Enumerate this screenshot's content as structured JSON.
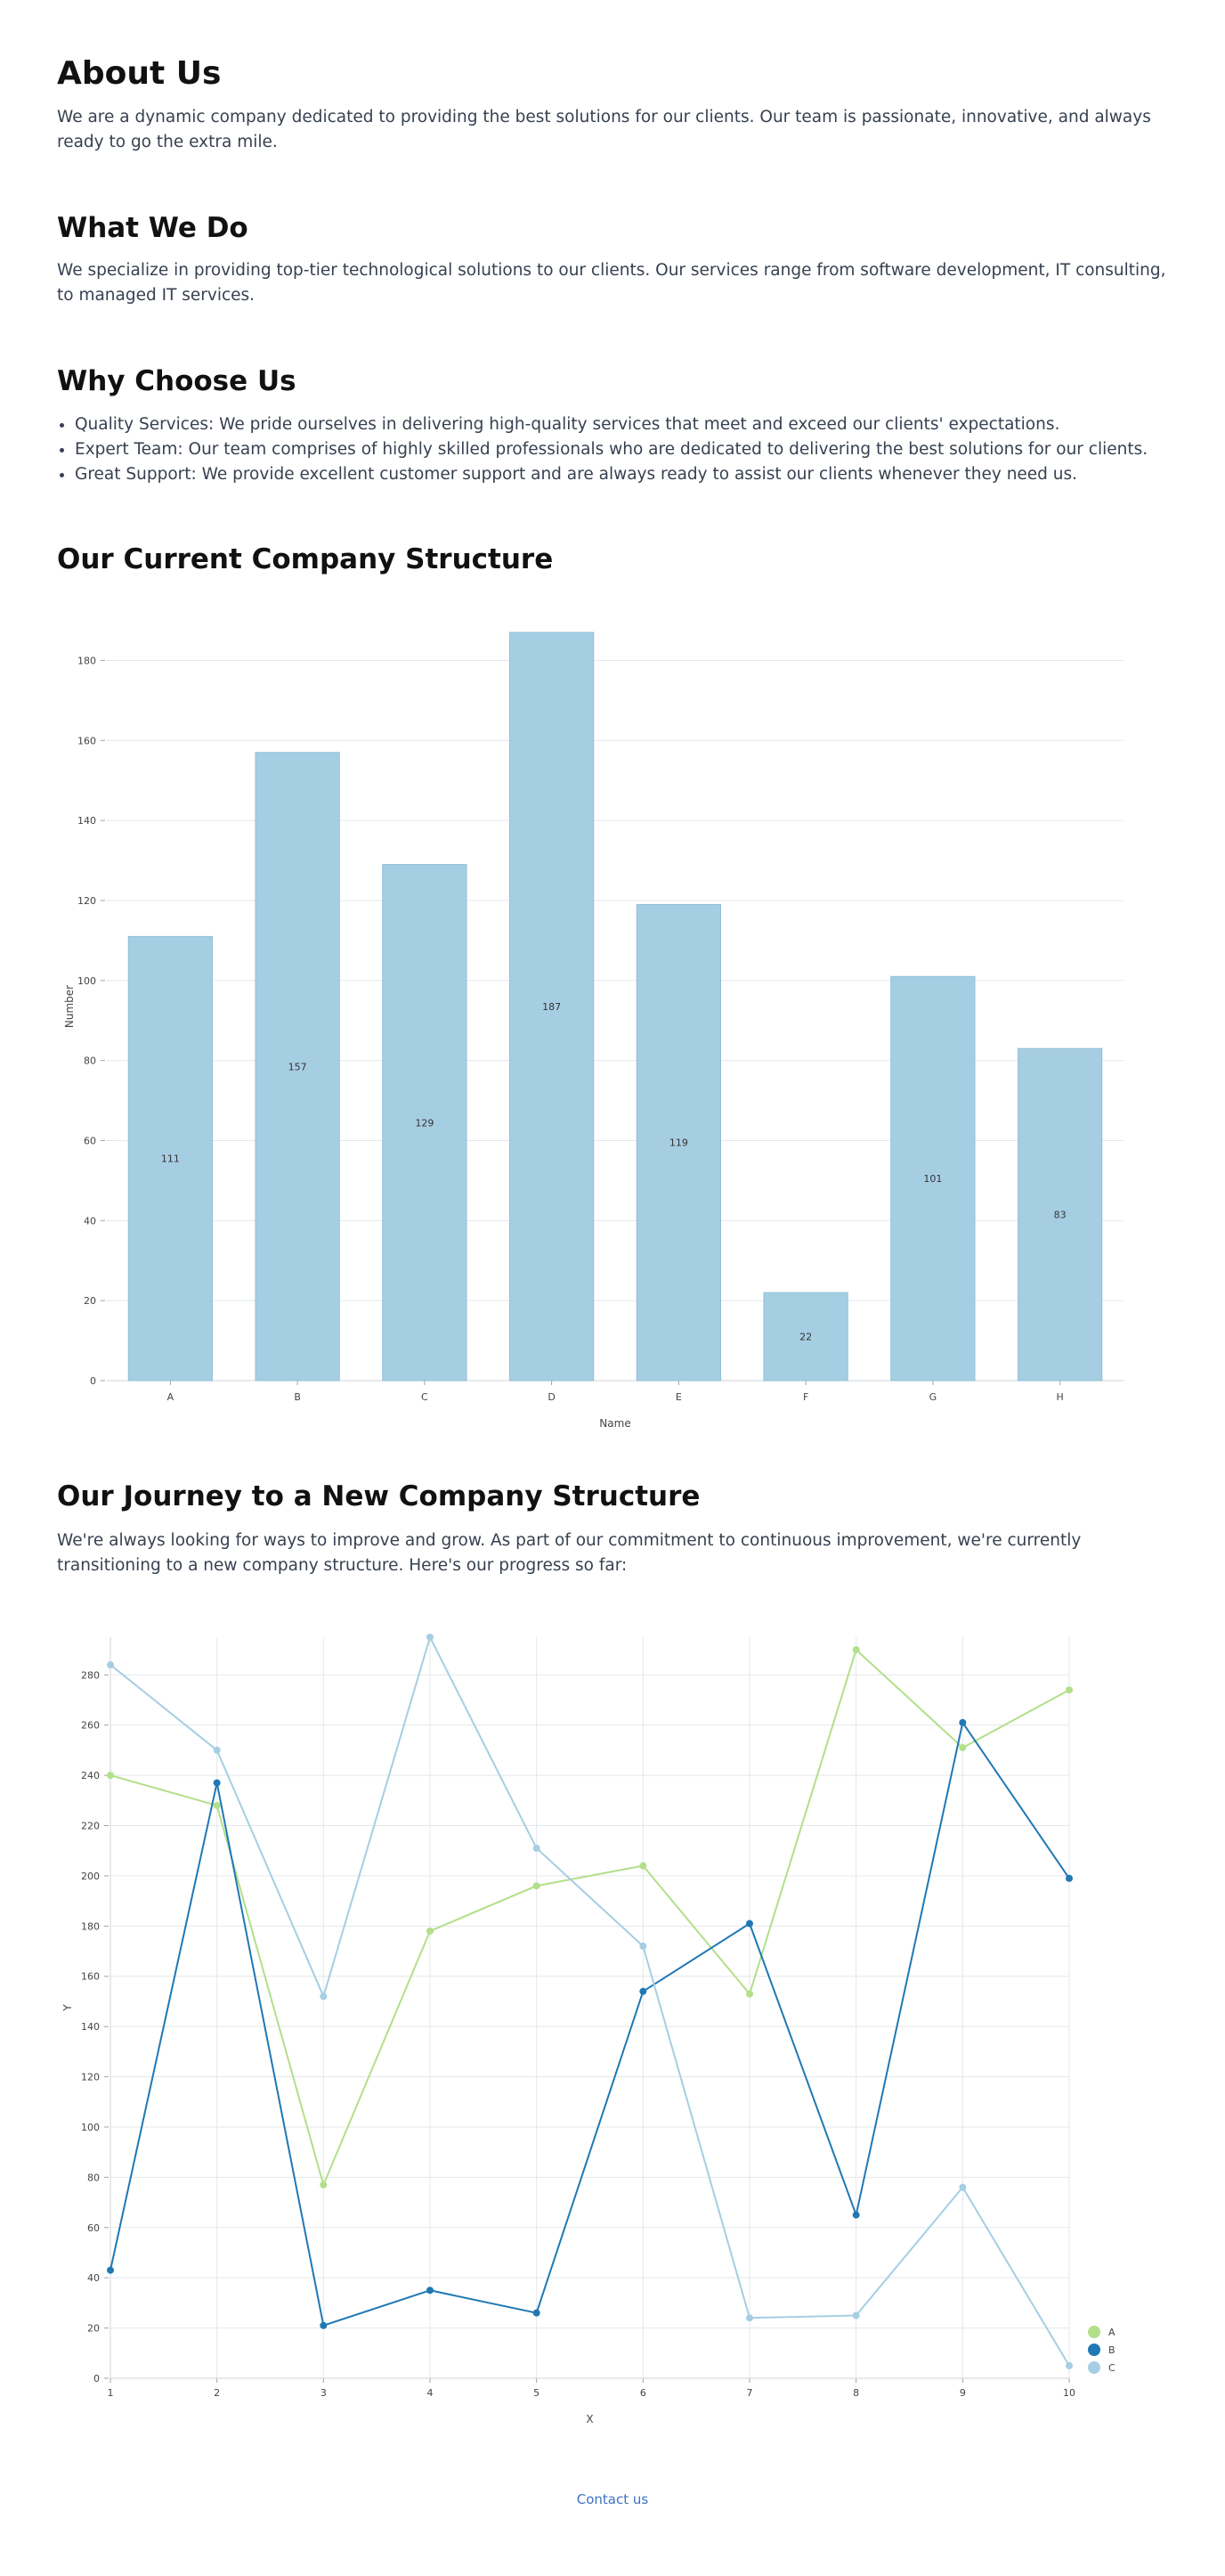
{
  "about": {
    "title": "About Us",
    "text": "We are a dynamic company dedicated to providing the best solutions for our clients. Our team is passionate, innovative, and always ready to go the extra mile."
  },
  "what": {
    "title": "What We Do",
    "text": "We specialize in providing top-tier technological solutions to our clients. Our services range from software development, IT consulting, to managed IT services."
  },
  "why": {
    "title": "Why Choose Us",
    "items": [
      "Quality Services: We pride ourselves in delivering high-quality services that meet and exceed our clients' expectations.",
      "Expert Team: Our team comprises of highly skilled professionals who are dedicated to delivering the best solutions for our clients.",
      "Great Support: We provide excellent customer support and are always ready to assist our clients whenever they need us."
    ]
  },
  "structure": {
    "title": "Our Current Company Structure"
  },
  "journey": {
    "title": "Our Journey to a New Company Structure",
    "text": "We're always looking for ways to improve and grow. As part of our commitment to continuous improvement, we're currently transitioning to a new company structure. Here's our progress so far:"
  },
  "footer": {
    "contact": "Contact us"
  },
  "chart_data": [
    {
      "type": "bar",
      "categories": [
        "A",
        "B",
        "C",
        "D",
        "E",
        "F",
        "G",
        "H"
      ],
      "values": [
        111,
        157,
        129,
        187,
        119,
        22,
        101,
        83
      ],
      "xlabel": "Name",
      "ylabel": "Number",
      "ylim": [
        0,
        187
      ],
      "yticks": [
        0,
        20,
        40,
        60,
        80,
        100,
        120,
        140,
        160,
        180
      ],
      "grid": true,
      "color": "#a6cee3"
    },
    {
      "type": "line",
      "x": [
        1,
        2,
        3,
        4,
        5,
        6,
        7,
        8,
        9,
        10
      ],
      "series": [
        {
          "name": "A",
          "color": "#b2df8a",
          "values": [
            240,
            228,
            77,
            178,
            196,
            204,
            153,
            290,
            251,
            274
          ]
        },
        {
          "name": "B",
          "color": "#1f78b4",
          "values": [
            43,
            237,
            21,
            35,
            26,
            154,
            181,
            65,
            261,
            199
          ]
        },
        {
          "name": "C",
          "color": "#a6cee3",
          "values": [
            284,
            250,
            152,
            295,
            211,
            172,
            24,
            25,
            76,
            5
          ]
        }
      ],
      "xlabel": "X",
      "ylabel": "Y",
      "xlim": [
        1,
        10
      ],
      "ylim": [
        0,
        295
      ],
      "yticks": [
        0,
        20,
        40,
        60,
        80,
        100,
        120,
        140,
        160,
        180,
        200,
        220,
        240,
        260,
        280
      ],
      "grid": true,
      "legend": "bottom-right"
    }
  ]
}
